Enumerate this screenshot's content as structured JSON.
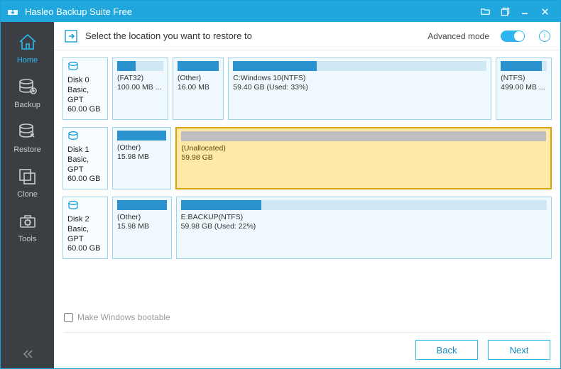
{
  "app": {
    "title": "Hasleo Backup Suite Free"
  },
  "header": {
    "prompt": "Select the location you want to restore to",
    "advanced_label": "Advanced mode",
    "advanced_on": true
  },
  "sidebar": {
    "items": [
      {
        "id": "home",
        "label": "Home",
        "active": true
      },
      {
        "id": "backup",
        "label": "Backup",
        "active": false
      },
      {
        "id": "restore",
        "label": "Restore",
        "active": false
      },
      {
        "id": "clone",
        "label": "Clone",
        "active": false
      },
      {
        "id": "tools",
        "label": "Tools",
        "active": false
      }
    ]
  },
  "disks": [
    {
      "name": "Disk 0",
      "meta1": "Basic, GPT",
      "meta2": "60.00 GB",
      "partitions": [
        {
          "label1": "(FAT32)",
          "label2": "100.00 MB ...",
          "fill_pct": 40,
          "flex": 10,
          "selected": false
        },
        {
          "label1": "(Other)",
          "label2": "16.00 MB",
          "fill_pct": 100,
          "flex": 9,
          "selected": false
        },
        {
          "label1": "C:Windows 10(NTFS)",
          "label2": "59.40 GB (Used: 33%)",
          "fill_pct": 33,
          "flex": 55,
          "selected": false
        },
        {
          "label1": "(NTFS)",
          "label2": "499.00 MB ...",
          "fill_pct": 90,
          "flex": 10,
          "selected": false
        }
      ]
    },
    {
      "name": "Disk 1",
      "meta1": "Basic, GPT",
      "meta2": "60.00 GB",
      "partitions": [
        {
          "label1": "(Other)",
          "label2": "15.98 MB",
          "fill_pct": 100,
          "flex": 10,
          "selected": false
        },
        {
          "label1": "(Unallocated)",
          "label2": "59.98 GB",
          "fill_pct": 0,
          "flex": 74,
          "selected": true
        }
      ]
    },
    {
      "name": "Disk 2",
      "meta1": "Basic, GPT",
      "meta2": "60.00 GB",
      "partitions": [
        {
          "label1": "(Other)",
          "label2": "15.98 MB",
          "fill_pct": 100,
          "flex": 10,
          "selected": false
        },
        {
          "label1": "E:BACKUP(NTFS)",
          "label2": "59.98 GB (Used: 22%)",
          "fill_pct": 22,
          "flex": 74,
          "selected": false
        }
      ]
    }
  ],
  "footer": {
    "bootable_label": "Make Windows bootable",
    "bootable_checked": false,
    "back_label": "Back",
    "next_label": "Next"
  },
  "colors": {
    "accent": "#20a7de",
    "sidebar_bg": "#3b3e42",
    "part_border": "#9ed4ec",
    "bar_fill": "#2a93cf",
    "selected_bg": "#ffe9a8",
    "selected_border": "#d9a300"
  }
}
